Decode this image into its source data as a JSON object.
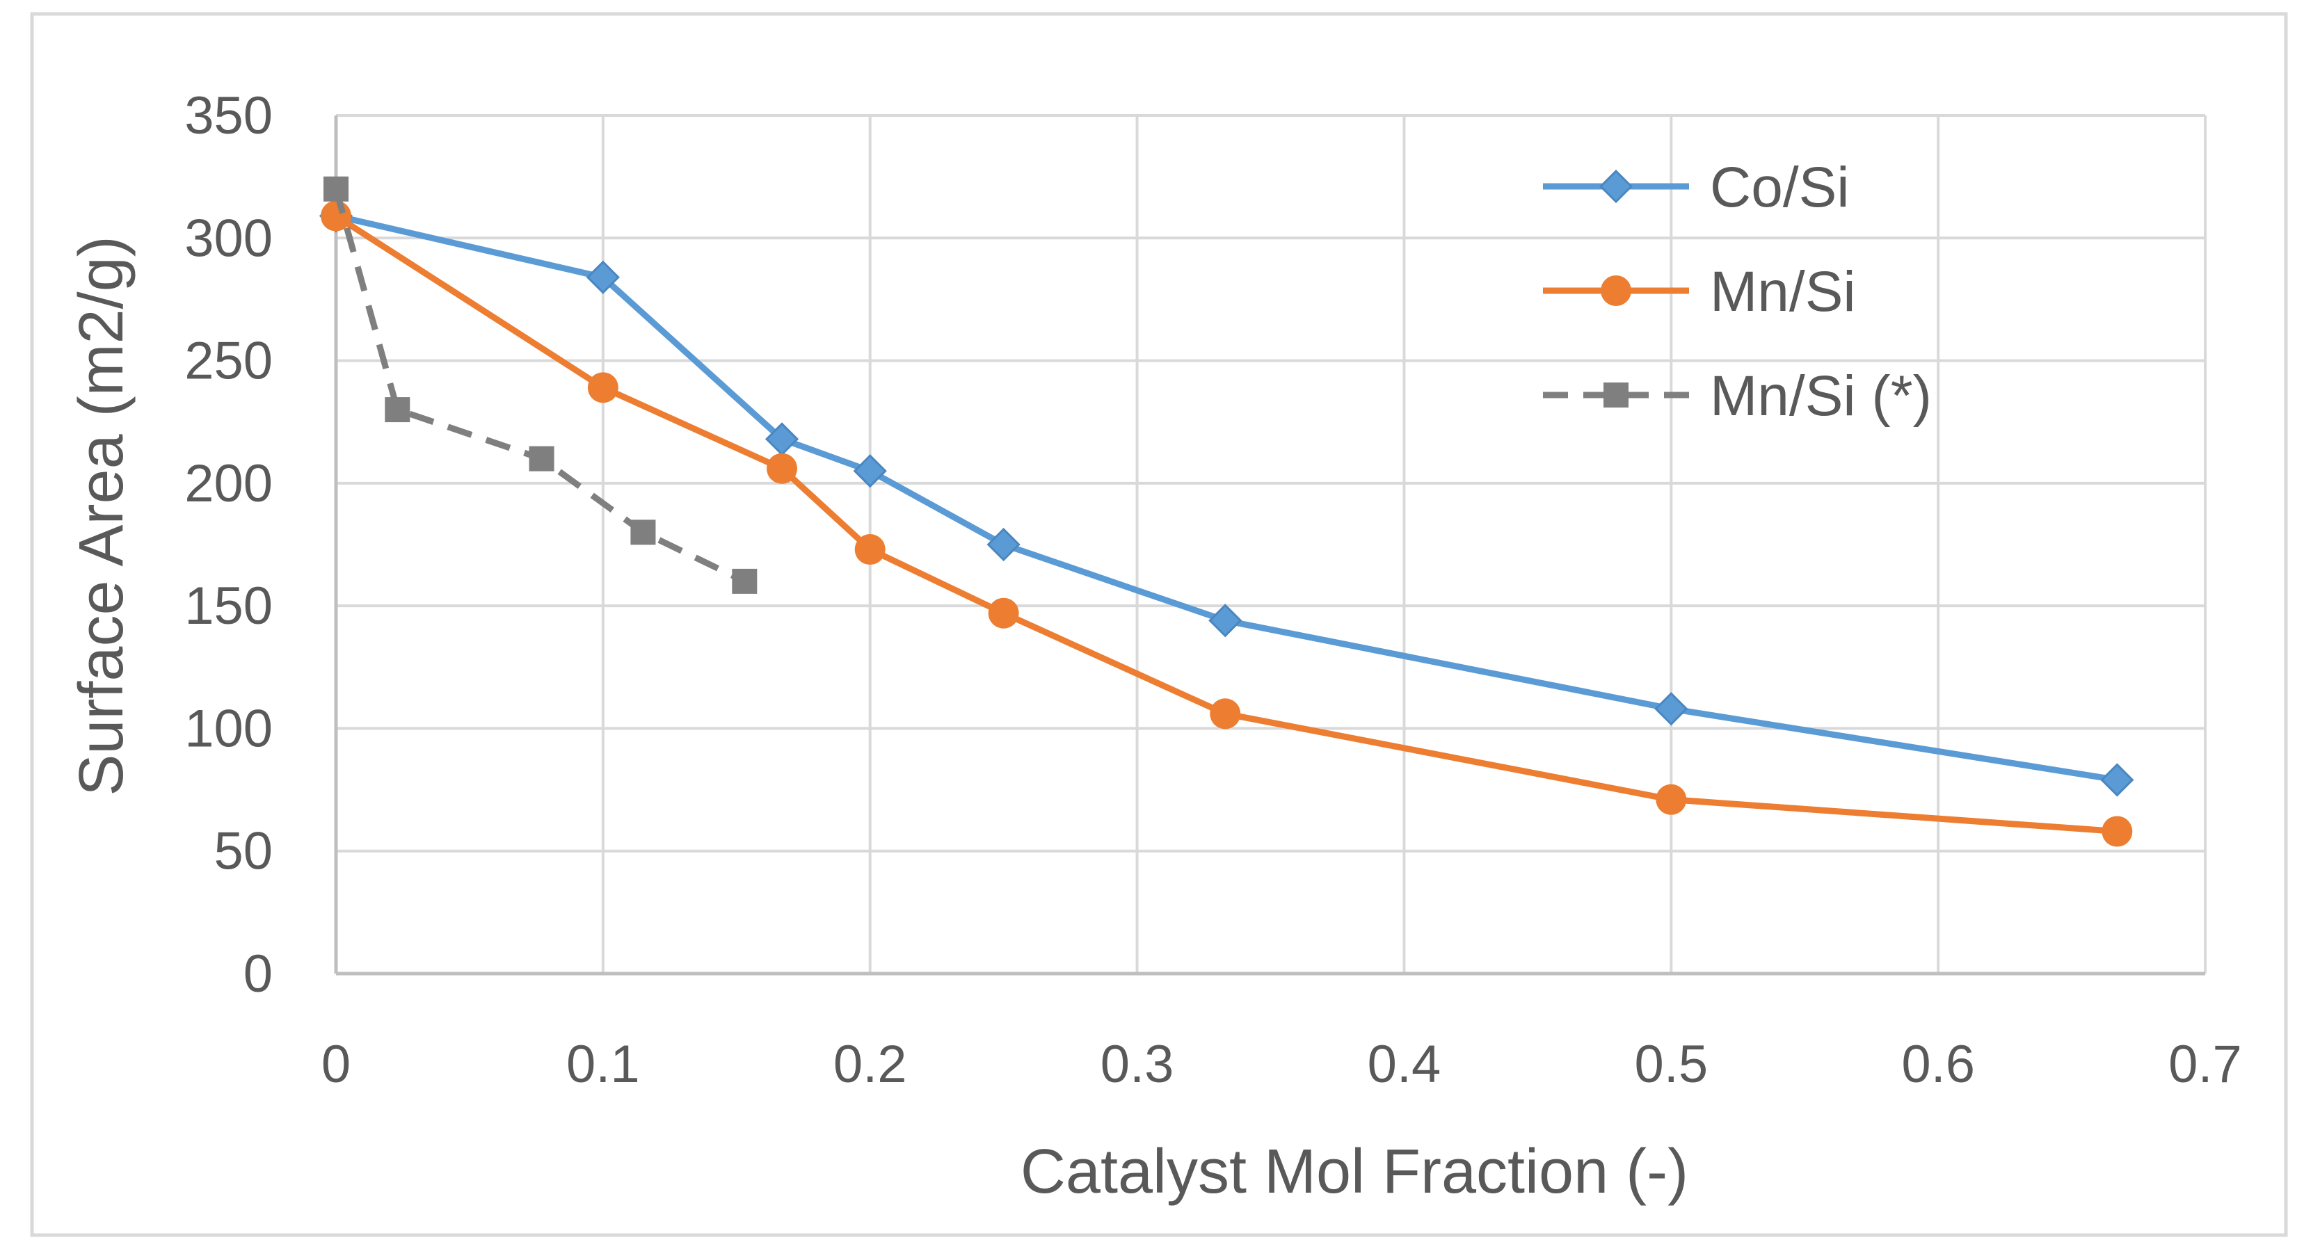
{
  "chart_data": {
    "type": "line",
    "title": "",
    "xlabel": "Catalyst Mol Fraction (-)",
    "ylabel": "Surface Area (m2/g)",
    "xlim": [
      0,
      0.7
    ],
    "ylim": [
      0,
      350
    ],
    "x_ticks": [
      0,
      0.1,
      0.2,
      0.3,
      0.4,
      0.5,
      0.6,
      0.7
    ],
    "x_tick_labels": [
      "0",
      "0.1",
      "0.2",
      "0.3",
      "0.4",
      "0.5",
      "0.6",
      "0.7"
    ],
    "y_ticks": [
      0,
      50,
      100,
      150,
      200,
      250,
      300,
      350
    ],
    "y_tick_labels": [
      "0",
      "50",
      "100",
      "150",
      "200",
      "250",
      "300",
      "350"
    ],
    "grid": true,
    "legend_position": "top-right",
    "series": [
      {
        "name": "Co/Si",
        "color": "#5b9bd5",
        "marker": "diamond",
        "dash": "solid",
        "x": [
          0,
          0.1,
          0.167,
          0.2,
          0.25,
          0.333,
          0.5,
          0.667
        ],
        "y": [
          309,
          284,
          218,
          205,
          175,
          144,
          108,
          79
        ]
      },
      {
        "name": "Mn/Si",
        "color": "#ed7d31",
        "marker": "circle",
        "dash": "solid",
        "x": [
          0,
          0.1,
          0.167,
          0.2,
          0.25,
          0.333,
          0.5,
          0.667
        ],
        "y": [
          309,
          239,
          206,
          173,
          147,
          106,
          71,
          58
        ]
      },
      {
        "name": "Mn/Si (*)",
        "color": "#7f7f7f",
        "marker": "square",
        "dash": "dashed",
        "x": [
          0,
          0.023,
          0.077,
          0.115,
          0.153
        ],
        "y": [
          320,
          230,
          210,
          180,
          160
        ]
      }
    ]
  }
}
